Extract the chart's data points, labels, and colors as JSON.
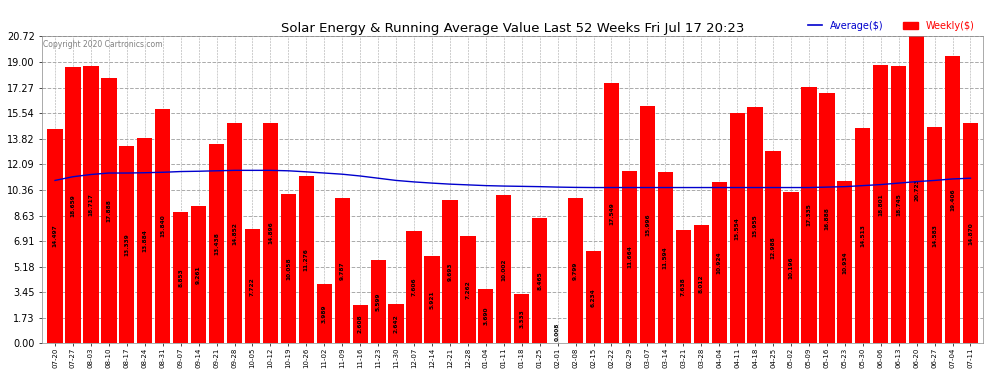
{
  "title": "Solar Energy & Running Average Value Last 52 Weeks Fri Jul 17 20:23",
  "copyright": "Copyright 2020 Cartronics.com",
  "legend_avg": "Average($)",
  "legend_weekly": "Weekly($)",
  "yticks": [
    0.0,
    1.73,
    3.45,
    5.18,
    6.91,
    8.63,
    10.36,
    12.09,
    13.82,
    15.54,
    17.27,
    19.0,
    20.72
  ],
  "ylim": [
    0.0,
    20.72
  ],
  "bar_color": "#FF0000",
  "avg_line_color": "#0000CD",
  "background_color": "#FFFFFF",
  "grid_color": "#AAAAAA",
  "categories": [
    "07-20",
    "07-27",
    "08-03",
    "08-10",
    "08-17",
    "08-24",
    "08-31",
    "09-07",
    "09-14",
    "09-21",
    "09-28",
    "10-05",
    "10-12",
    "10-19",
    "10-26",
    "11-02",
    "11-09",
    "11-16",
    "11-23",
    "11-30",
    "12-07",
    "12-14",
    "12-21",
    "12-28",
    "01-04",
    "01-11",
    "01-18",
    "01-25",
    "02-01",
    "02-08",
    "02-15",
    "02-22",
    "02-29",
    "03-07",
    "03-14",
    "03-21",
    "03-28",
    "04-04",
    "04-11",
    "04-18",
    "04-25",
    "05-02",
    "05-09",
    "05-16",
    "05-23",
    "05-30",
    "06-06",
    "06-13",
    "06-20",
    "06-27",
    "07-04",
    "07-11"
  ],
  "bar_values": [
    14.497,
    18.659,
    18.717,
    17.888,
    13.339,
    13.884,
    15.84,
    8.853,
    9.261,
    13.438,
    14.852,
    7.722,
    14.896,
    10.058,
    11.276,
    3.989,
    9.787,
    2.608,
    5.599,
    2.642,
    7.606,
    5.921,
    9.693,
    7.262,
    3.69,
    10.002,
    3.333,
    8.465,
    0.008,
    9.799,
    6.234,
    17.549,
    11.664,
    15.996,
    11.594,
    7.638,
    8.012,
    10.924,
    15.554,
    15.955,
    12.988,
    10.196,
    17.335,
    16.888,
    10.934,
    14.513,
    18.801,
    18.745,
    20.723,
    14.583,
    19.406,
    14.87
  ],
  "avg_values": [
    11.0,
    11.25,
    11.4,
    11.5,
    11.5,
    11.52,
    11.55,
    11.6,
    11.62,
    11.65,
    11.68,
    11.68,
    11.68,
    11.65,
    11.58,
    11.5,
    11.42,
    11.3,
    11.15,
    11.0,
    10.9,
    10.82,
    10.75,
    10.7,
    10.65,
    10.62,
    10.6,
    10.58,
    10.55,
    10.53,
    10.52,
    10.52,
    10.52,
    10.52,
    10.52,
    10.52,
    10.52,
    10.52,
    10.52,
    10.52,
    10.52,
    10.52,
    10.52,
    10.55,
    10.58,
    10.65,
    10.72,
    10.82,
    10.92,
    11.0,
    11.1,
    11.15
  ]
}
